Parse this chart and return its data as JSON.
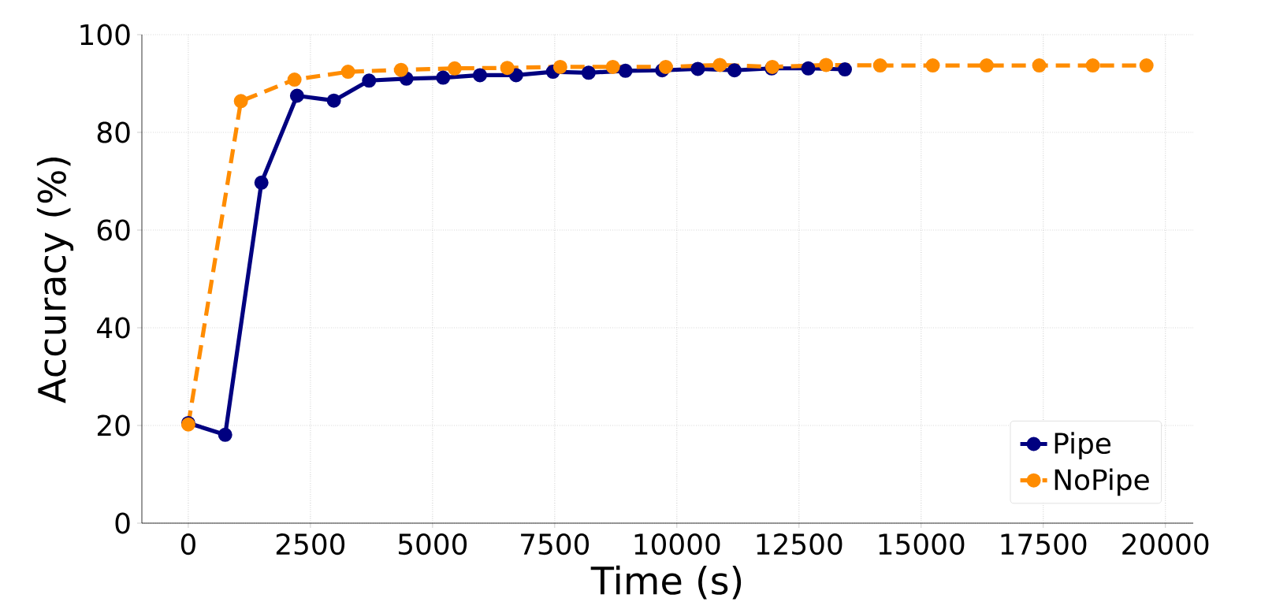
{
  "chart_data": {
    "type": "line",
    "xlabel": "Time (s)",
    "ylabel": "Accuracy (%)",
    "xlim": [
      -950,
      20570
    ],
    "ylim": [
      0,
      100
    ],
    "xticks": [
      0,
      2500,
      5000,
      7500,
      10000,
      12500,
      15000,
      17500,
      20000
    ],
    "yticks": [
      0,
      20,
      40,
      60,
      80,
      100
    ],
    "grid": true,
    "legend": "bottom right",
    "marker": "circle",
    "series": [
      {
        "name": "Pipe",
        "color": "#000080",
        "line_style": "solid",
        "x": [
          0,
          755,
          1497,
          2226,
          2980,
          3700,
          4465,
          5216,
          5970,
          6710,
          7465,
          8194,
          8948,
          9700,
          10430,
          11180,
          11940,
          12690,
          13440
        ],
        "values": [
          20.5,
          18.1,
          69.7,
          87.5,
          86.5,
          90.6,
          91.0,
          91.2,
          91.7,
          91.7,
          92.4,
          92.2,
          92.6,
          92.7,
          93.0,
          92.7,
          93.1,
          93.1,
          92.9
        ]
      },
      {
        "name": "NoPipe",
        "color": "#ff8c00",
        "line_style": "dashed",
        "x": [
          0,
          1077,
          2174,
          3270,
          4355,
          5452,
          6529,
          7613,
          8690,
          9774,
          10880,
          11955,
          13055,
          14161,
          15239,
          16342,
          17417,
          18514,
          19613
        ],
        "values": [
          20.2,
          86.4,
          90.8,
          92.4,
          92.8,
          93.1,
          93.2,
          93.4,
          93.4,
          93.4,
          93.8,
          93.4,
          93.8,
          93.7,
          93.7,
          93.7,
          93.7,
          93.7,
          93.7
        ]
      }
    ]
  }
}
